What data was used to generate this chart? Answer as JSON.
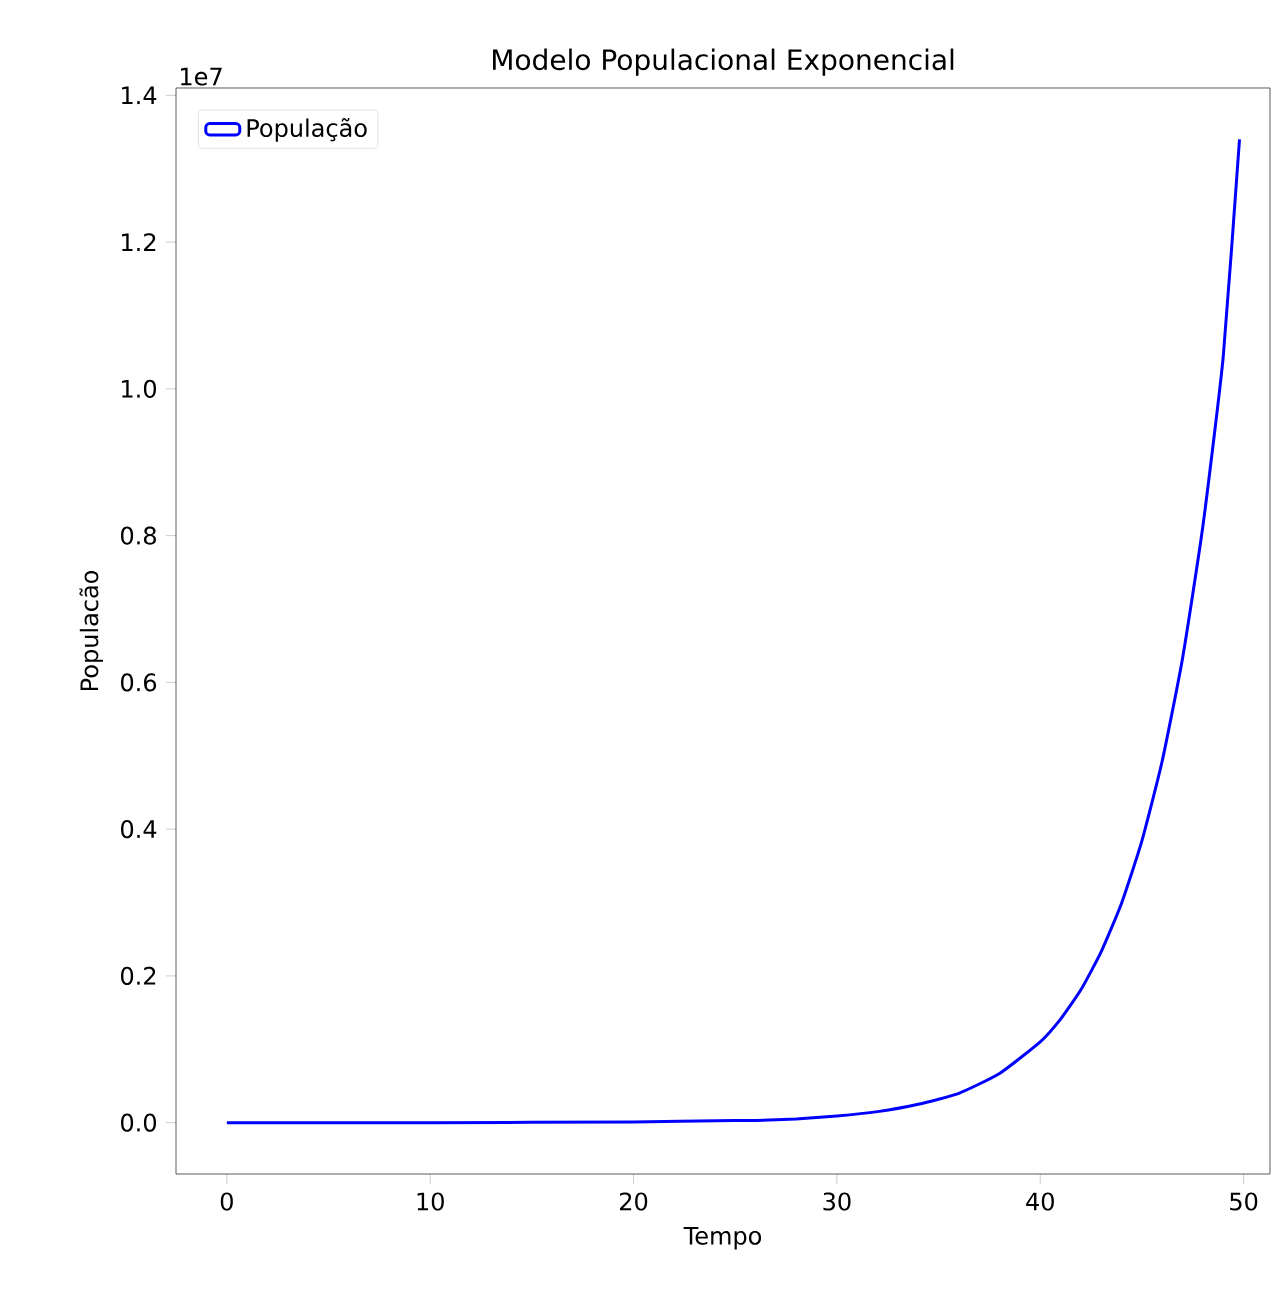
{
  "chart_data": {
    "type": "line",
    "title": "Modelo Populacional Exponencial",
    "xlabel": "Tempo",
    "ylabel": "Populacão",
    "annotations": [
      "1e7"
    ],
    "x": [
      0,
      10,
      20,
      25,
      26,
      28,
      30,
      32,
      34,
      36,
      38,
      40,
      41,
      42,
      43,
      44,
      45,
      46,
      47,
      48,
      49,
      49.8
    ],
    "series": [
      {
        "name": "População",
        "color": "#0000ff",
        "values": [
          0,
          0,
          0.001,
          0.003,
          0.003,
          0.005,
          0.009,
          0.015,
          0.025,
          0.04,
          0.067,
          0.11,
          0.141,
          0.181,
          0.233,
          0.299,
          0.384,
          0.493,
          0.633,
          0.813,
          1.044,
          1.34
        ]
      }
    ],
    "xlim": [
      -2.5,
      51.3
    ],
    "ylim": [
      -0.07,
      1.41
    ],
    "xticks": [
      0,
      10,
      20,
      30,
      40,
      50
    ],
    "yticks": [
      {
        "value": 0,
        "label": "0.0"
      },
      {
        "value": 0.2,
        "label": "0.2"
      },
      {
        "value": 0.4,
        "label": "0.4"
      },
      {
        "value": 0.6,
        "label": "0.6"
      },
      {
        "value": 0.8,
        "label": "0.8"
      },
      {
        "value": 1.0,
        "label": "1.0"
      },
      {
        "value": 1.2,
        "label": "1.2"
      },
      {
        "value": 1.4,
        "label": "1.4"
      }
    ],
    "legend": "top left",
    "marker": "none",
    "line_style": "solid"
  }
}
